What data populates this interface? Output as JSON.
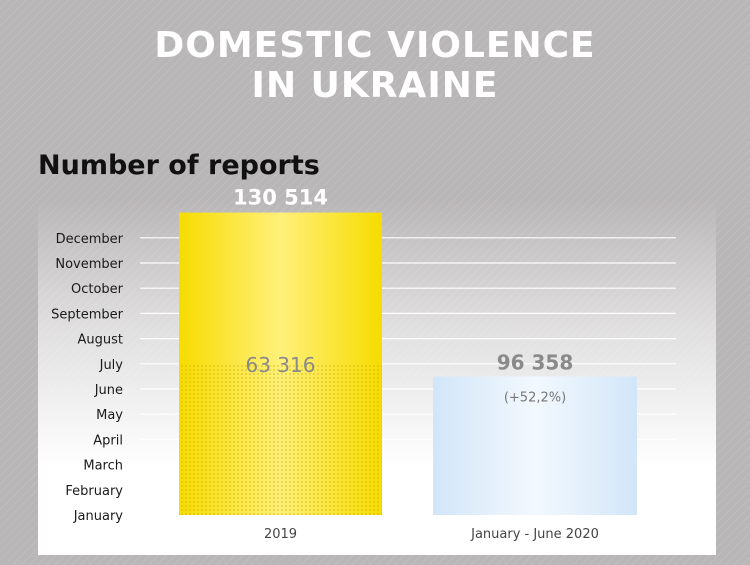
{
  "header": {
    "title_line1": "DOMESTIC VIOLENCE",
    "title_line2": "IN UKRAINE"
  },
  "colors": {
    "bar_2019": "#fbe200",
    "bar_2020": "#d6e9f9",
    "gridline": "#ffffff",
    "value_label": "#8a8a8a"
  },
  "chart_data": {
    "type": "bar",
    "title": "Number of reports",
    "xlabel": "",
    "ylabel": "",
    "y_ticks": [
      "January",
      "February",
      "March",
      "April",
      "May",
      "June",
      "July",
      "August",
      "September",
      "October",
      "November",
      "December"
    ],
    "categories": [
      "2019",
      "January - June 2020"
    ],
    "values": [
      130514,
      96358
    ],
    "bar_extent_months": [
      12,
      5.5
    ],
    "inner_segment": {
      "category": "2019",
      "value": 63316,
      "months": 6,
      "label": "63 316"
    },
    "value_labels": [
      "130 514",
      "96 358"
    ],
    "annotations": [
      {
        "category": "January - June 2020",
        "text": "(+52,2%)"
      }
    ]
  }
}
